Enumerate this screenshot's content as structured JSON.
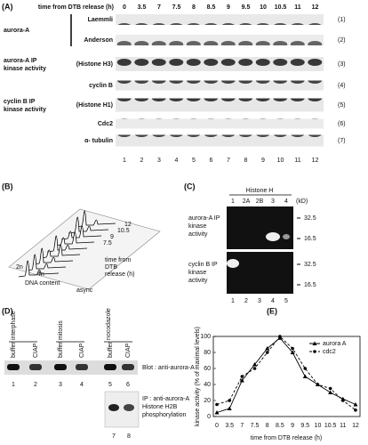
{
  "panel_a": {
    "label": "(A)",
    "header": "time from DTB release (h)",
    "times": [
      "0",
      "3.5",
      "7",
      "7.5",
      "8",
      "8.5",
      "9",
      "9.5",
      "10",
      "10.5",
      "11",
      "12"
    ],
    "rows": [
      {
        "group": [
          "aurora-A"
        ],
        "label": "Laemmli",
        "number": "(1)"
      },
      {
        "label": "Anderson",
        "number": "(2)"
      },
      {
        "group": [
          "aurora-A IP",
          "kinase activity"
        ],
        "label": "(Histone H3)",
        "number": "(3)"
      },
      {
        "label": "cyclin B",
        "number": "(4)"
      },
      {
        "group": [
          "cyclin B IP",
          "kinase activity"
        ],
        "label": "(Histone H1)",
        "number": "(5)"
      },
      {
        "label": "Cdc2",
        "number": "(6)"
      },
      {
        "label": "α- tubulin",
        "number": "(7)"
      }
    ],
    "lanes": [
      "1",
      "2",
      "3",
      "4",
      "5",
      "6",
      "7",
      "8",
      "9",
      "10",
      "11",
      "12"
    ]
  },
  "panel_b": {
    "label": "(B)",
    "n2": "2n",
    "n4": "4n",
    "x_label": "DNA content",
    "async": "async",
    "z_ticks": [
      "12",
      "10.5",
      "9",
      "7.5"
    ],
    "z_label": [
      "time from",
      "DTB",
      "release (h)"
    ]
  },
  "panel_c": {
    "label": "(C)",
    "header": "Histone H",
    "lanes_top": [
      "1",
      "2A",
      "2B",
      "3",
      "4"
    ],
    "unit": "(kD)",
    "markers": [
      "32.5",
      "16.5"
    ],
    "upper_label": [
      "aurora-A IP",
      "kinase",
      "activity"
    ],
    "lower_label": [
      "cyclin B IP",
      "kinase",
      "activity"
    ],
    "lanes_bottom": [
      "1",
      "2",
      "3",
      "4",
      "5"
    ]
  },
  "panel_d": {
    "label": "(D)",
    "groups": [
      "interphase",
      "mitosis",
      "nocodazole"
    ],
    "treatments": [
      "buffer",
      "CIAP",
      "buffer",
      "CIAP",
      "buffer",
      "CIAP"
    ],
    "lanes": [
      "1",
      "2",
      "3",
      "4",
      "5",
      "6"
    ],
    "blot_label": "Blot : anti-aurora-A",
    "ip_label": [
      "IP : anti-aurora-A",
      "Histone H2B",
      "phosphorylation"
    ],
    "ip_lanes": [
      "7",
      "8"
    ]
  },
  "chart_data": {
    "type": "line",
    "label": "(E)",
    "x_label": "time from DTB release (h)",
    "y_label": "kinase activity (% of maximal levels)",
    "categories": [
      "0",
      "3.5",
      "7",
      "7.5",
      "8",
      "8.5",
      "9",
      "9.5",
      "10",
      "10.5",
      "11",
      "12"
    ],
    "series": [
      {
        "name": "aurora A",
        "color": "#000000",
        "marker": "triangle",
        "dash": false,
        "values": [
          5,
          10,
          45,
          65,
          85,
          98,
          80,
          50,
          40,
          30,
          22,
          15
        ]
      },
      {
        "name": "cdc2",
        "color": "#000000",
        "marker": "circle",
        "dash": true,
        "values": [
          15,
          20,
          50,
          60,
          80,
          100,
          85,
          60,
          40,
          35,
          20,
          8
        ]
      }
    ],
    "ylim": [
      0,
      100
    ],
    "yticks": [
      0,
      20,
      40,
      60,
      80,
      100
    ],
    "legend": "upper right"
  }
}
